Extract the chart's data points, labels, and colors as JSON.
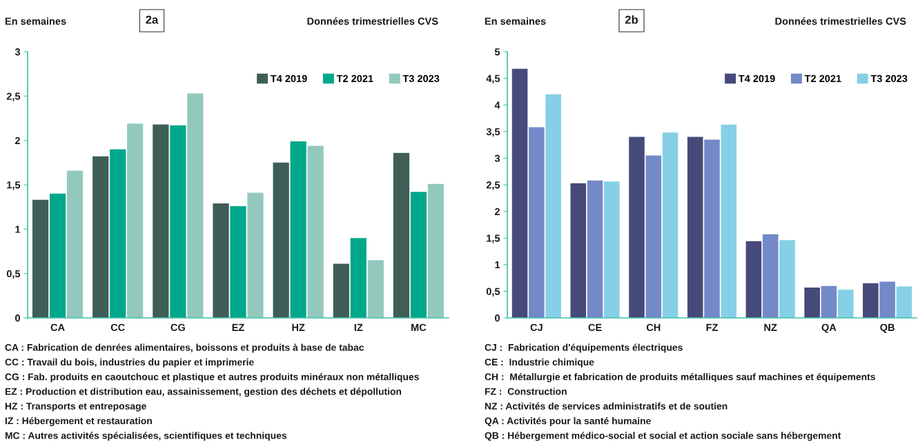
{
  "chart_data": [
    {
      "type": "bar",
      "title": "2a",
      "ylabel": "En semaines",
      "subtitle": "Données trimestrielles CVS",
      "categories": [
        "CA",
        "CC",
        "CG",
        "EZ",
        "HZ",
        "IZ",
        "MC"
      ],
      "series": [
        {
          "name": "T4 2019",
          "color": "#3f5e58",
          "values": [
            1.33,
            1.82,
            2.18,
            1.29,
            1.75,
            0.61,
            1.86
          ]
        },
        {
          "name": "T2 2021",
          "color": "#00a88a",
          "values": [
            1.4,
            1.9,
            2.17,
            1.26,
            1.99,
            0.9,
            1.42
          ]
        },
        {
          "name": "T3 2023",
          "color": "#93c9bd",
          "values": [
            1.66,
            2.19,
            2.53,
            1.41,
            1.94,
            0.65,
            1.51
          ]
        }
      ],
      "ylim": [
        0,
        3
      ],
      "yticks": [
        0,
        {
          "value": 0.5,
          "label": "0,5"
        },
        1,
        {
          "value": 1.5,
          "label": "1,5"
        },
        2,
        {
          "value": 2.5,
          "label": "2,5"
        },
        3
      ],
      "grid": false,
      "legend": "top right",
      "annotations": [
        "CA : Fabrication de denrées alimentaires, boissons et produits à base de tabac",
        "CC : Travail du bois, industries du papier et imprimerie",
        "CG : Fab. produits en caoutchouc et plastique et autres produits minéraux non métalliques",
        "EZ : Production et distribution eau, assainissement, gestion des déchets et dépollution",
        "HZ : Transports et entreposage",
        "IZ : Hébergement et restauration",
        "MC : Autres activités spécialisées, scientifiques et techniques"
      ]
    },
    {
      "type": "bar",
      "title": "2b",
      "ylabel": "En semaines",
      "subtitle": "Données trimestrielles CVS",
      "categories": [
        "CJ",
        "CE",
        "CH",
        "FZ",
        "NZ",
        "QA",
        "QB"
      ],
      "series": [
        {
          "name": "T4 2019",
          "color": "#454a7a",
          "values": [
            4.68,
            2.53,
            3.4,
            3.4,
            1.44,
            0.57,
            0.65
          ]
        },
        {
          "name": "T2 2021",
          "color": "#7489c8",
          "values": [
            3.58,
            2.58,
            3.05,
            3.35,
            1.57,
            0.6,
            0.68
          ]
        },
        {
          "name": "T3 2023",
          "color": "#85d0e6",
          "values": [
            4.2,
            2.56,
            3.48,
            3.63,
            1.46,
            0.53,
            0.59
          ]
        }
      ],
      "ylim": [
        0,
        5
      ],
      "yticks": [
        0,
        {
          "value": 0.5,
          "label": "0,5"
        },
        1,
        {
          "value": 1.5,
          "label": "1,5"
        },
        2,
        {
          "value": 2.5,
          "label": "2,5"
        },
        3,
        {
          "value": 3.5,
          "label": "3,5"
        },
        4,
        {
          "value": 4.5,
          "label": "4,5"
        },
        5
      ],
      "grid": false,
      "legend": "top right",
      "annotations": [
        "CJ :  Fabrication d'équipements électriques",
        "CE :  Industrie chimique",
        "CH :  Métallurgie et fabrication de produits métalliques sauf machines et équipements",
        "FZ :  Construction",
        "NZ : Activités de services administratifs et de soutien",
        "QA : Activités pour la santé humaine",
        "QB : Hébergement médico-social et social et action sociale sans hébergement"
      ]
    }
  ]
}
